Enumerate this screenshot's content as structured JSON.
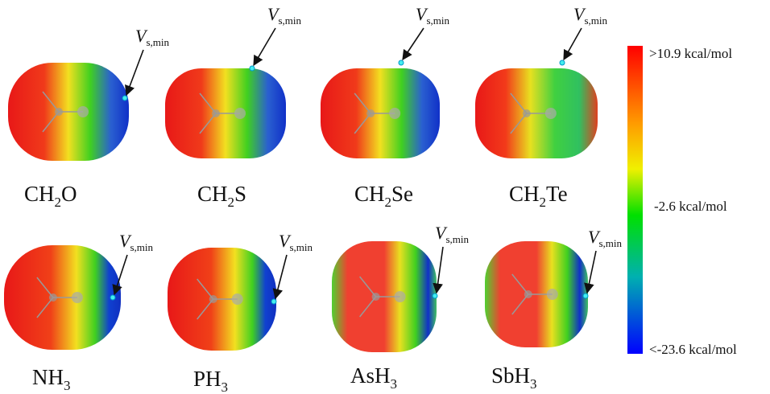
{
  "molecules": [
    {
      "label": [
        "CH",
        "2",
        "O"
      ],
      "annotation": {
        "symbol": "V",
        "subscript": "s,min"
      }
    },
    {
      "label": [
        "CH",
        "2",
        "S"
      ],
      "annotation": {
        "symbol": "V",
        "subscript": "s,min"
      }
    },
    {
      "label": [
        "CH",
        "2",
        "Se"
      ],
      "annotation": {
        "symbol": "V",
        "subscript": "s,min"
      }
    },
    {
      "label": [
        "CH",
        "2",
        "Te"
      ],
      "annotation": {
        "symbol": "V",
        "subscript": "s,min"
      }
    },
    {
      "label": [
        "NH",
        "3"
      ],
      "annotation": {
        "symbol": "V",
        "subscript": "s,min"
      }
    },
    {
      "label": [
        "PH",
        "3"
      ],
      "annotation": {
        "symbol": "V",
        "subscript": "s,min"
      }
    },
    {
      "label": [
        "AsH",
        "3"
      ],
      "annotation": {
        "symbol": "V",
        "subscript": "s,min"
      }
    },
    {
      "label": [
        "SbH",
        "3"
      ],
      "annotation": {
        "symbol": "V",
        "subscript": "s,min"
      }
    }
  ],
  "colorbar": {
    "top": ">10.9 kcal/mol",
    "middle": "-2.6 kcal/mol",
    "bottom": "<-23.6 kcal/mol"
  }
}
